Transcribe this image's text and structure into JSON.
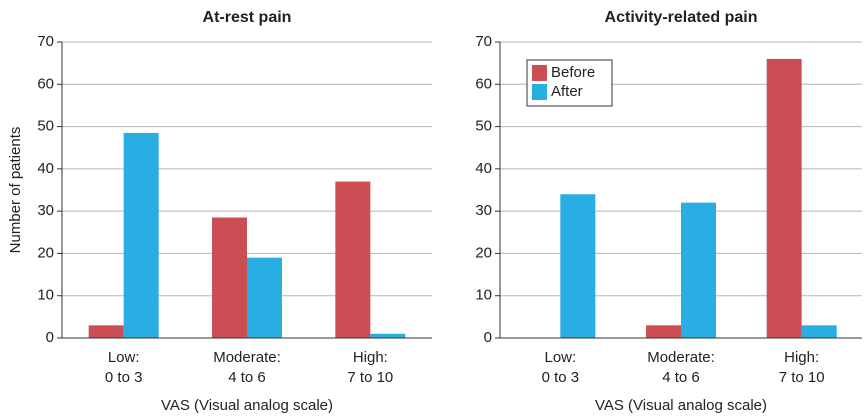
{
  "chart_data": [
    {
      "type": "bar",
      "title": "At-rest pain",
      "categories": [
        [
          "Low:",
          "0 to 3"
        ],
        [
          "Moderate:",
          "4 to 6"
        ],
        [
          "High:",
          "7 to 10"
        ]
      ],
      "series": [
        {
          "color": "#cc4e55",
          "values": [
            3,
            28.5,
            37
          ]
        },
        {
          "color": "#29aee3",
          "values": [
            48.5,
            19,
            1
          ]
        }
      ],
      "xlabel": "VAS (Visual analog scale)",
      "ylabel": "Number of patients",
      "ylim": [
        0,
        70
      ],
      "yticks": [
        0,
        10,
        20,
        30,
        40,
        50,
        60,
        70
      ],
      "grid": true
    },
    {
      "type": "bar",
      "title": "Activity-related pain",
      "categories": [
        [
          "Low:",
          "0 to 3"
        ],
        [
          "Moderate:",
          "4 to 6"
        ],
        [
          "High:",
          "7 to 10"
        ]
      ],
      "series": [
        {
          "name": "Before",
          "color": "#cc4e55",
          "values": [
            0,
            3,
            66
          ]
        },
        {
          "name": "After",
          "color": "#29aee3",
          "values": [
            34,
            32,
            3
          ]
        }
      ],
      "xlabel": "VAS (Visual analog scale)",
      "ylim": [
        0,
        70
      ],
      "yticks": [
        0,
        10,
        20,
        30,
        40,
        50,
        60,
        70
      ],
      "grid": true,
      "legend": "upper left"
    }
  ]
}
